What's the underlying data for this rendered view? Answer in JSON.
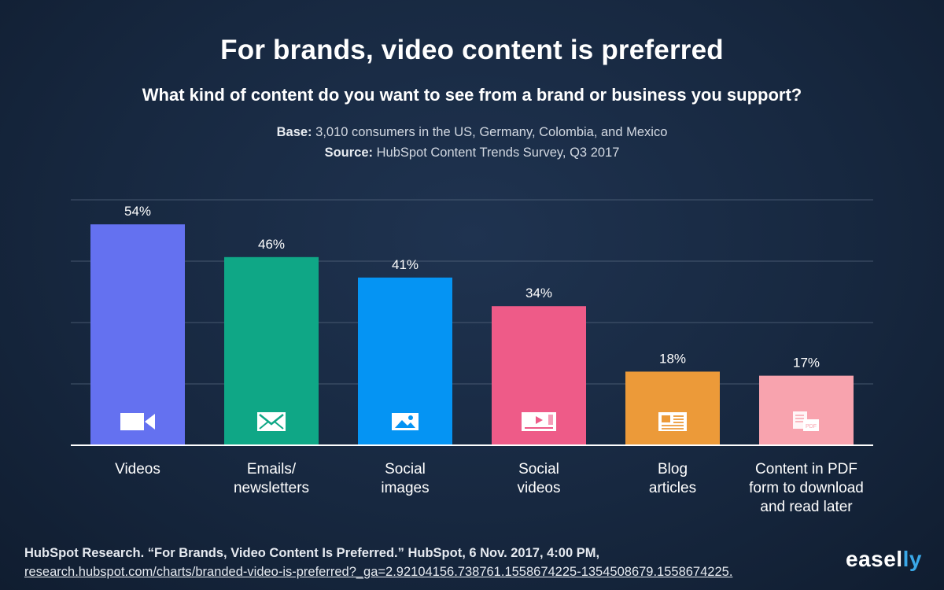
{
  "header": {
    "title": "For brands, video content is preferred",
    "subtitle": "What kind of content do you want to see from a brand or business you support?",
    "base_label": "Base:",
    "base_text": " 3,010 consumers in the US, Germany, Colombia, and Mexico",
    "source_label": "Source:",
    "source_text": " HubSpot Content Trends Survey, Q3 2017"
  },
  "chart_data": {
    "type": "bar",
    "title": "",
    "xlabel": "",
    "ylabel": "",
    "ylim": [
      0,
      60
    ],
    "grid": true,
    "categories": [
      [
        "Videos"
      ],
      [
        "Emails/",
        "newsletters"
      ],
      [
        "Social",
        "images"
      ],
      [
        "Social",
        "videos"
      ],
      [
        "Blog",
        "articles"
      ],
      [
        "Content in PDF",
        "form to download",
        "and read later"
      ]
    ],
    "values": [
      54,
      46,
      41,
      34,
      18,
      17
    ],
    "data_labels": [
      "54%",
      "46%",
      "41%",
      "34%",
      "18%",
      "17%"
    ],
    "colors": [
      "#6471f0",
      "#0fa786",
      "#0594f3",
      "#ee5b88",
      "#ec9a39",
      "#f8a3ae"
    ],
    "icons": [
      "video-camera-icon",
      "envelope-icon",
      "image-icon",
      "video-player-icon",
      "article-icon",
      "pdf-document-icon"
    ]
  },
  "footer": {
    "citation": "HubSpot Research. “For Brands, Video Content Is Preferred.” HubSpot, 6 Nov. 2017, 4:00 PM, ",
    "link": "research.hubspot.com/charts/branded-video-is-preferred?_ga=2.92104156.738761.1558674225-1354508679.1558674225.",
    "logo_main": "easel",
    "logo_accent": "ly"
  }
}
